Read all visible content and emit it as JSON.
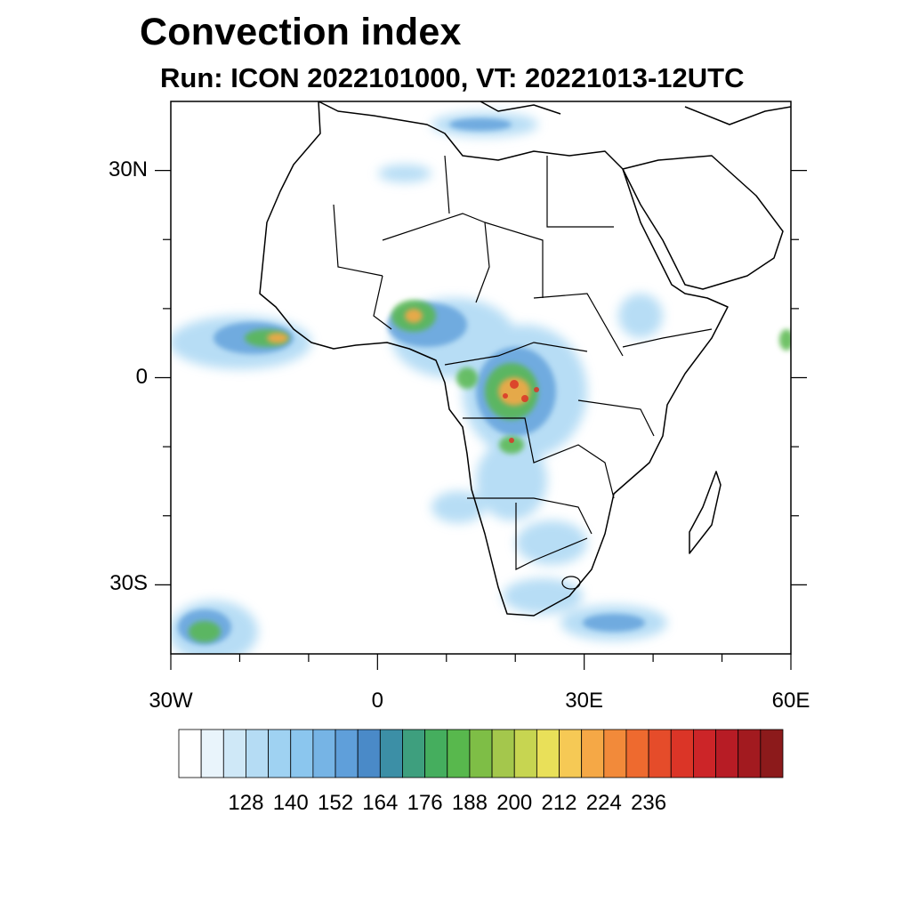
{
  "title": "Convection index",
  "subtitle": "Run: ICON 2022101000,  VT: 20221013-12UTC",
  "map": {
    "projection": "cylindrical equidistant",
    "lon_range": [
      -30,
      60
    ],
    "lat_range": [
      -40,
      40
    ],
    "lat_ticks": [
      {
        "label": "30N",
        "value": 30
      },
      {
        "label": "0",
        "value": 0
      },
      {
        "label": "30S",
        "value": -30
      }
    ],
    "lon_ticks": [
      {
        "label": "30W",
        "value": -30
      },
      {
        "label": "0",
        "value": 0
      },
      {
        "label": "30E",
        "value": 30
      },
      {
        "label": "60E",
        "value": 60
      }
    ]
  },
  "colorbar": {
    "colors": [
      "#ffffff",
      "#e9f4fb",
      "#cfe8f7",
      "#b5dcf4",
      "#9fd2f2",
      "#8bc6ee",
      "#76b4e5",
      "#5f9fda",
      "#4a8ac8",
      "#3c8fa6",
      "#3e9f7e",
      "#45ae5e",
      "#58b84d",
      "#7ebe46",
      "#a4c74c",
      "#c7d551",
      "#e9e059",
      "#f6c955",
      "#f5a846",
      "#f28a3a",
      "#ee6a2f",
      "#e54c2a",
      "#db3527",
      "#cc2528",
      "#b71c25",
      "#a21a1f",
      "#8c1a1b"
    ],
    "labels": [
      "128",
      "140",
      "152",
      "164",
      "176",
      "188",
      "200",
      "212",
      "224",
      "236"
    ]
  }
}
